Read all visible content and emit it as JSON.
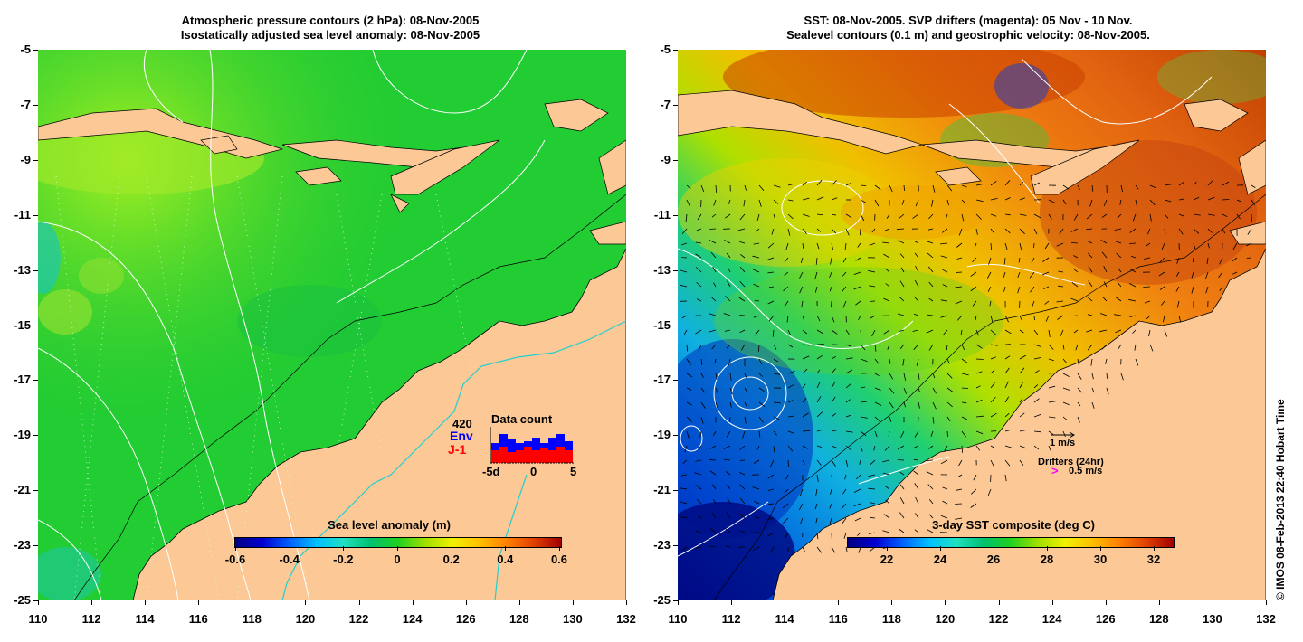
{
  "left_panel": {
    "title_line1": "Atmospheric pressure contours (2 hPa): 08-Nov-2005",
    "title_line2": "Isostatically adjusted sea level anomaly: 08-Nov-2005",
    "colorbar": {
      "title": "Sea level anomaly (m)",
      "ticks": [
        "-0.6",
        "-0.4",
        "-0.2",
        "0",
        "0.2",
        "0.4",
        "0.6"
      ],
      "colormap": [
        "#000080",
        "#0000d0",
        "#0060ff",
        "#00c0ff",
        "#20e0c0",
        "#00c070",
        "#20d020",
        "#a0e000",
        "#f0f000",
        "#ffc000",
        "#ff8000",
        "#e04000",
        "#a00000"
      ]
    },
    "data_count": {
      "title": "Data count",
      "total": "420",
      "env_label": "Env",
      "j1_label": "J-1",
      "env_color": "#0000ff",
      "j1_color": "#ff0000",
      "axis_ticks": [
        "-5d",
        "0",
        "5"
      ],
      "env_values": [
        0.55,
        0.8,
        0.65,
        0.55,
        0.6,
        0.7,
        0.55,
        0.7,
        0.8,
        0.6
      ],
      "j1_values": [
        0.35,
        0.45,
        0.3,
        0.35,
        0.45,
        0.35,
        0.4,
        0.35,
        0.45,
        0.35
      ]
    }
  },
  "right_panel": {
    "title_line1": "SST: 08-Nov-2005. SVP drifters (magenta): 05 Nov - 10 Nov.",
    "title_line2": "Sealevel contours (0.1 m) and geostrophic velocity: 08-Nov-2005.",
    "colorbar": {
      "title": "3-day SST composite (deg C)",
      "ticks": [
        "22",
        "24",
        "26",
        "28",
        "30",
        "32"
      ],
      "colormap": [
        "#000080",
        "#0000d0",
        "#0060ff",
        "#00c0ff",
        "#20e0c0",
        "#00c070",
        "#20d020",
        "#a0e000",
        "#f0f000",
        "#ffc000",
        "#ff8000",
        "#e04000",
        "#a00000"
      ]
    },
    "legend": {
      "speed_label": "1 m/s",
      "drifters_label": "Drifters (24hr)",
      "drifter_speed": "0.5 m/s",
      "drifter_color": "#ff00ff"
    }
  },
  "x_axis_ticks": [
    "110",
    "112",
    "114",
    "116",
    "118",
    "120",
    "122",
    "124",
    "126",
    "128",
    "130",
    "132"
  ],
  "y_axis_ticks": [
    "-5",
    "-7",
    "-9",
    "-11",
    "-13",
    "-15",
    "-17",
    "-19",
    "-21",
    "-23",
    "-25"
  ],
  "colors": {
    "land": "#fbc896",
    "left_ocean": "#22cc33",
    "contour": "#ffffff",
    "shelf_contour": "#20d0d0"
  },
  "copyright": "© IMOS 08-Feb-2013 22:40 Hobart Time"
}
